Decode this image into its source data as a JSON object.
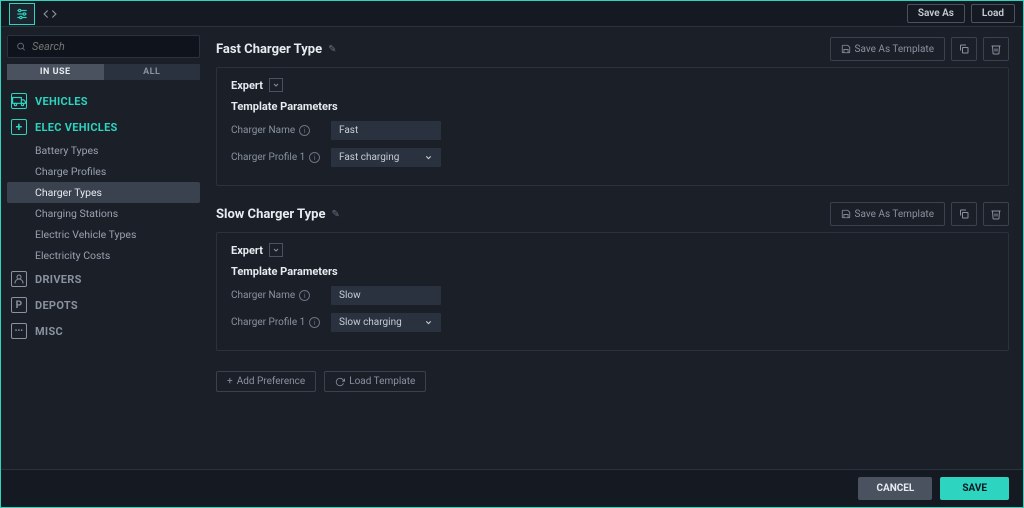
{
  "colors": {
    "accent": "#2dd4bf",
    "bg": "#1a1f28",
    "panel": "#151a22",
    "border": "#2a3240",
    "text": "#c8cdd4",
    "muted": "#8a92a0"
  },
  "topbar": {
    "saveAs": "Save As",
    "load": "Load"
  },
  "search": {
    "placeholder": "Search"
  },
  "toggle": {
    "inUse": "IN USE",
    "all": "ALL"
  },
  "sidebar": {
    "categories": [
      {
        "name": "vehicles",
        "label": "VEHICLES",
        "icon": "truck",
        "muted": false,
        "items": []
      },
      {
        "name": "elec-vehicles",
        "label": "ELEC VEHICLES",
        "icon": "plus",
        "muted": false,
        "items": [
          {
            "label": "Battery Types",
            "active": false
          },
          {
            "label": "Charge Profiles",
            "active": false
          },
          {
            "label": "Charger Types",
            "active": true
          },
          {
            "label": "Charging Stations",
            "active": false
          },
          {
            "label": "Electric Vehicle Types",
            "active": false
          },
          {
            "label": "Electricity Costs",
            "active": false
          }
        ]
      },
      {
        "name": "drivers",
        "label": "DRIVERS",
        "icon": "user",
        "muted": true,
        "items": []
      },
      {
        "name": "depots",
        "label": "DEPOTS",
        "icon": "p",
        "muted": true,
        "items": []
      },
      {
        "name": "misc",
        "label": "MISC",
        "icon": "misc",
        "muted": true,
        "items": []
      }
    ]
  },
  "cards": [
    {
      "title": "Fast Charger Type",
      "expert": "Expert",
      "section": "Template Parameters",
      "params": [
        {
          "label": "Charger Name",
          "type": "text",
          "value": "Fast"
        },
        {
          "label": "Charger Profile 1",
          "type": "select",
          "value": "Fast charging"
        }
      ]
    },
    {
      "title": "Slow Charger Type",
      "expert": "Expert",
      "section": "Template Parameters",
      "params": [
        {
          "label": "Charger Name",
          "type": "text",
          "value": "Slow"
        },
        {
          "label": "Charger Profile 1",
          "type": "select",
          "value": "Slow charging"
        }
      ]
    }
  ],
  "actions": {
    "saveAsTemplate": "Save As Template",
    "addPreference": "Add Preference",
    "loadTemplate": "Load Template"
  },
  "footer": {
    "cancel": "CANCEL",
    "save": "SAVE"
  }
}
